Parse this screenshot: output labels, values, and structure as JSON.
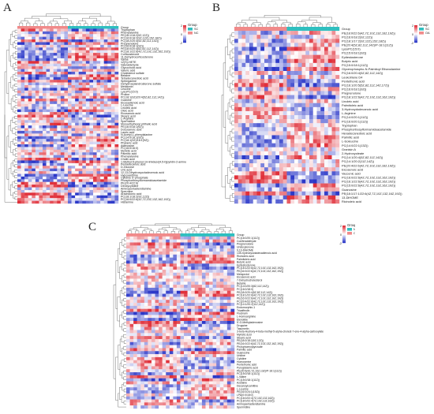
{
  "colors": {
    "high": "#e0303a",
    "mid": "#ffffff",
    "low": "#2b38c8",
    "group1": "#f08a8a",
    "group2": "#2fbfbf",
    "dendro": "#555555"
  },
  "panels": [
    {
      "letter": "A",
      "legend": {
        "title": "Group",
        "groups": [
          "SC",
          "NC"
        ],
        "ticks": [
          "2",
          "0",
          "-2"
        ]
      },
      "n_columns": 28,
      "rows": [
        "Group",
        "Tryptophan",
        "Phenylalanine",
        "PE(18:1/18:2(9Z,12Z))",
        "PC(16:0/18:2(9Z,12Z),15Z,18Z))",
        "PC(18:2/20:4(5Z,8Z,11Z,14Z))",
        "Pregnenolone",
        "PC(16:0/18:1(9Z))",
        "PE(18:0/20:4(5Z,8Z,11Z,14Z))",
        "PC(18:1/22:6(4Z,7Z,10Z,13Z,16Z,19Z))",
        "Corticosterone",
        "11-Dehydrocorticosterone",
        "Valine",
        "12(S)-HETE",
        "Valeraldehyde",
        "Glycocholic acid",
        "Valeric acid",
        "Cholesterol sulfate",
        "Betaine",
        "Tetradecanedioic acid",
        "Sphinganine",
        "Dehydroepiandrosterone sulfate",
        "Melatonin",
        "Leucine",
        "LysoPC(15:0)",
        "Proline",
        "PC(18:1(9Z)/20:4(5Z,8Z,11Z,14Z))",
        "Guanine",
        "Eicosadienoic acid",
        "L-Leucine",
        "Linoleic acid",
        "Oleic acid",
        "Eicosanoic acid",
        "Stearic acid",
        "L-Arginine",
        "Spermidine",
        "Monoethylhexyl phthalic acid",
        "PE(16:0/18:1(9Z))",
        "Docosanoic acid",
        "Lauric acid",
        "N-Acetyl-L-phenylalanine",
        "PC(14:0/18:1(9Z))",
        "PC(18:1(9Z)/18:1(9Z))",
        "Phytanic acid",
        "Adenosine",
        "PC(16:0/16:0)",
        "Myristic acid",
        "Palmitic acid",
        "Phenylalanine",
        "Cholic acid",
        "1-Methyl-5-phenyl-1H-imidazo[4,5-b]pyridin-2-amine",
        "Pentadecanoic acid",
        "D-Glucose",
        "Uric acid",
        "12,13-Dihydroxyoctadecenoic acid",
        "Hypoxanthine",
        "Cytidine 5'-phosphate",
        "Phosphoribosylformamidoacetamide",
        "PE(20:4/22:6)",
        "Deoxycytidine",
        "Aminopentadiendiamine",
        "Spermine",
        "Arachidonic acid",
        "PC(18:1/18:2(9Z,12Z))",
        "PC(16:0/22:6(4Z,7Z,10Z,13Z,16Z,19Z))",
        "Histamine"
      ]
    },
    {
      "letter": "B",
      "legend": {
        "title": "Group",
        "groups": [
          "SC",
          "OA"
        ],
        "ticks": [
          "2",
          "0",
          "-2"
        ]
      },
      "n_columns": 28,
      "rows": [
        "Group",
        "PE(18:0/22:6(4Z,7Z,10Z,13Z,16Z,19Z))",
        "PC(16:0/18:2(9Z,12Z))",
        "PC(18:1/17:2(9Z,12Z),15Z,18Z))",
        "PE(20:4(5Z,8Z,11Z,14Z)/P-18:1(11Z))",
        "LysoPC(15:0)",
        "PC(15:0/18:1(9Z))",
        "Epitestosterone",
        "Butyric acid",
        "PC(15:0/18:1(11Z))",
        "Glycerophospho-N-Palmitoyl Ethanolamine",
        "PC(16:0/20:4(5Z,8Z,11Z,14Z))",
        "Leukotriene D4",
        "Pentethonic acid",
        "PC(16:1/20:5(5Z,8Z,11Z,14Z,17Z))",
        "PC(16:0/18:1(9Z))",
        "Pregnenolone",
        "PC(18:1/22:6(4Z,7Z,10Z,13Z,16Z,19Z))",
        "Linoleic acid",
        "Palmitoleic acid",
        "3-Hydroxydodecanoic acid",
        "L-Arginine",
        "PC(14:0/20:1(11Z))",
        "PC(16:0/20:1(11Z))",
        "Tryptophan",
        "Phosphoribosylformamidoacetamide",
        "Hexadecanedioic acid",
        "Palmitic acid",
        "L-Isoleucine",
        "PC(14:0/22:1(13Z))",
        "Granisin A",
        "2-Hydroxyoleate",
        "PC(14:1/20:4(5Z,8Z,11Z,14Z))",
        "PC(14:1/20:2(11Z,14Z))",
        "PE(20:4/22:6(4Z,7Z,10Z,13Z,16Z,19Z))",
        "Eicosenoic acid",
        "Vaccenic acid",
        "PC(16:0/22:6(4Z,7Z,10Z,13Z,16Z,19Z))",
        "PC(16:1/22:6(4Z,7Z,10Z,13Z,16Z,19Z))",
        "PC(15:0/22:6(4Z,7Z,10Z,13Z,16Z,19Z))",
        "Guanosine",
        "PE(18:1/17:1/22:6(4Z,7Z,10Z,13Z,16Z,19Z))",
        "13-DiHOME",
        "Ricinoleic acid"
      ]
    },
    {
      "letter": "C",
      "legend": {
        "title": "Group",
        "groups": [
          "NC",
          "OA"
        ],
        "ticks": [
          "2",
          "0",
          "-2"
        ]
      },
      "n_columns": 30,
      "rows": [
        "Group",
        "PC(16:0/20:1(11Z))",
        "Coniferaldehyde",
        "Pregnenolone",
        "Undecylenone",
        "9,10-DiHOME",
        "13S-hydroxyoctadecadienoic acid",
        "Ricinoleic acid",
        "Palmitoleic acid",
        "Butyric acid",
        "Epitestosterone",
        "PC(18:1/22:6(4Z,7Z,10Z,13Z,16Z,19Z))",
        "PE(16:0/22:6(4Z,7Z,10Z,13Z,16Z,19Z))",
        "Metoprolol",
        "Eicosenoic acid",
        "7-Dehydrocholesterol",
        "Betaine",
        "PC(14:0/20:3(8Z,11Z,14Z))",
        "PC(16:0/18:0)",
        "PE(18:0/20:4(5Z,8Z,11Z,14Z))",
        "PC(18:1/22:6(4Z,7Z,10Z,13Z,16Z,19Z))",
        "PE(16:0/22:6(4Z,7Z,10Z,13Z,16Z,19Z))",
        "PC(20:4/22:6(4Z,7Z,10Z,13Z,16Z,19Z))",
        "PC(14:1/20:2(11Z,14Z))",
        "Endomorphin-1",
        "Tricaffeolin",
        "Flucinam",
        "L-Homoarginine",
        "Elenolide",
        "5'-O-Methyladenosine",
        "Drugsine",
        "Tasumetin",
        "3-beta-Hydroxy-4-beta-methyl-5-alpha-cholest-7-ene-4-alpha-carboxylate",
        "Myristic acid",
        "Stearic acid",
        "PE(18:0/18:2(9Z,12Z))",
        "PE(16:0/22:6(4Z,7Z,10Z,13Z,16Z,19Z))",
        "Phosphoenolpyruvate",
        "Palmitic acid",
        "Guanosine",
        "Uridine",
        "Cytidine",
        "Homoserine",
        "Pentethonic acid",
        "Pyroglutamic acid",
        "PE(20:5(4Z,7Z,10Z,13Z)/P-18:1(11Z))",
        "PC(15:0/18:1(11Z))",
        "L-Valine",
        "PC(15:0/18:1(11Z))",
        "Azelaine",
        "Decanoylcarnitine",
        "L-Leucine",
        "PE(16:0/24:1(15Z))",
        "LPA(0:0/18:0)",
        "PC(16:0/22:4(7Z,10Z,13Z,16Z))",
        "PC(18:0/22:4(7Z,10Z,13Z,16Z))",
        "Aminopentadiendiamine",
        "Spermidine"
      ]
    }
  ]
}
